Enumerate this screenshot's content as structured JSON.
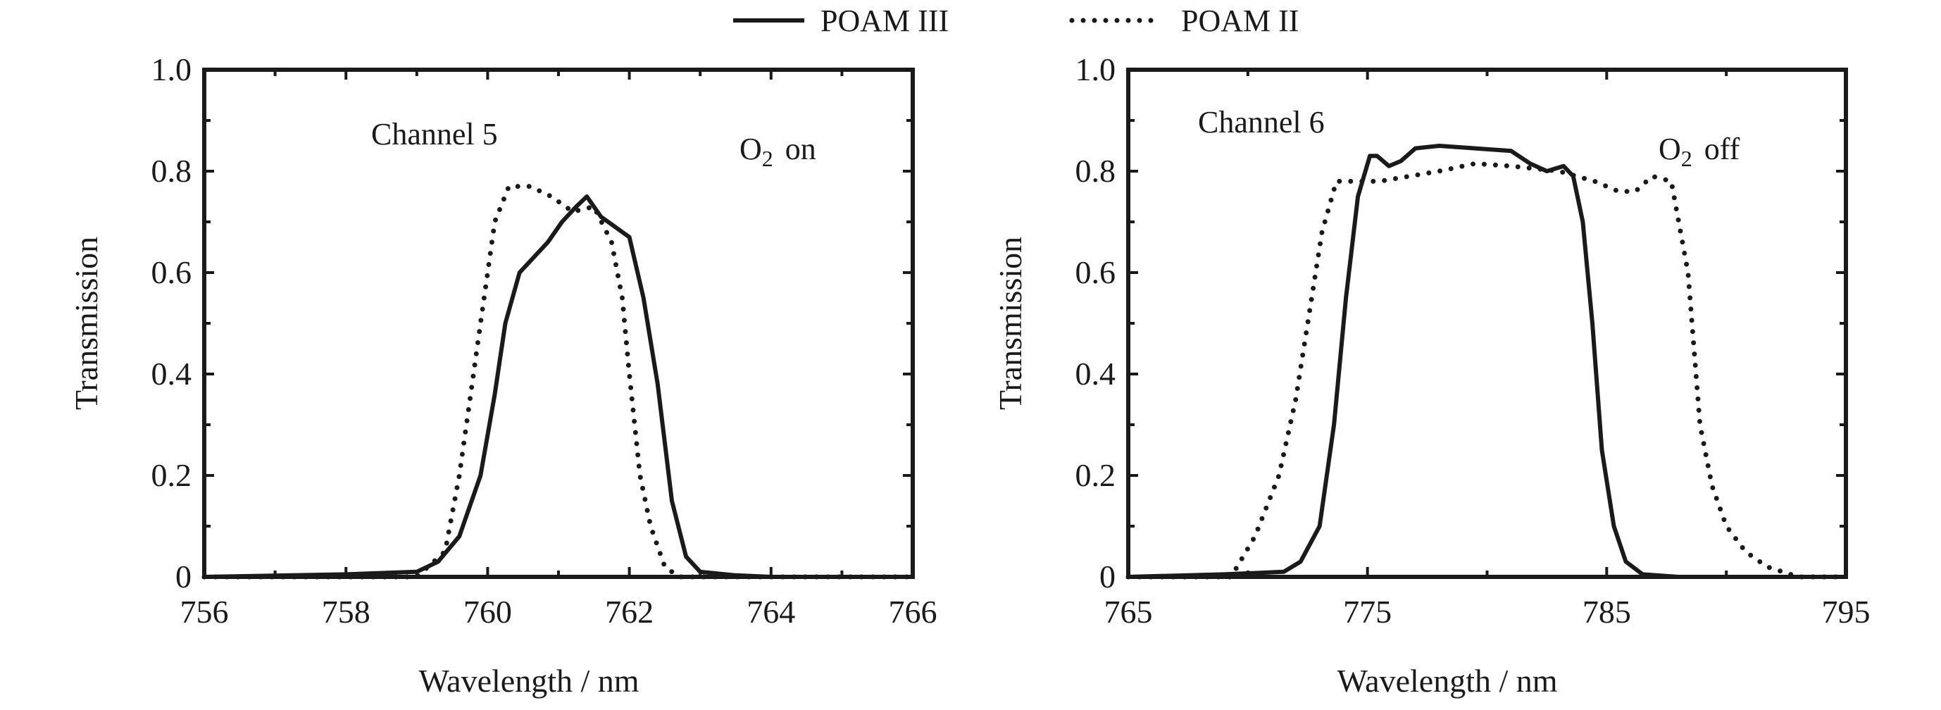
{
  "legend": {
    "items": [
      {
        "label": "POAM III",
        "style": "solid"
      },
      {
        "label": "POAM II",
        "style": "dotted"
      }
    ]
  },
  "chart_data": [
    {
      "type": "line",
      "title": "",
      "annotation": "Channel 5",
      "annotation2_main": "O",
      "annotation2_sub": "2",
      "annotation2_rest": "on",
      "xlabel": "Wavelength / nm",
      "ylabel": "Transmission",
      "xlim": [
        756,
        766
      ],
      "ylim": [
        0,
        1.0
      ],
      "xticks": [
        756,
        758,
        760,
        762,
        764,
        766
      ],
      "xminor": [
        757,
        759,
        761,
        763,
        765
      ],
      "yticks": [
        0,
        0.2,
        0.4,
        0.6,
        0.8,
        1.0
      ],
      "yticklabels": [
        "0",
        "0.2",
        "0.4",
        "0.6",
        "0.8",
        "1.0"
      ],
      "series": [
        {
          "name": "POAM III",
          "style": "solid",
          "x": [
            756,
            758,
            759,
            759.3,
            759.6,
            759.9,
            760.1,
            760.25,
            760.45,
            760.65,
            760.85,
            761.05,
            761.25,
            761.4,
            761.6,
            761.8,
            762.0,
            762.2,
            762.4,
            762.6,
            762.8,
            763.0,
            763.5,
            764,
            766
          ],
          "y": [
            0,
            0.005,
            0.01,
            0.03,
            0.08,
            0.2,
            0.36,
            0.5,
            0.6,
            0.63,
            0.66,
            0.7,
            0.73,
            0.75,
            0.71,
            0.69,
            0.67,
            0.55,
            0.38,
            0.15,
            0.04,
            0.01,
            0.003,
            0,
            0
          ]
        },
        {
          "name": "POAM II",
          "style": "dotted",
          "x": [
            756,
            759.0,
            759.4,
            759.6,
            759.75,
            759.9,
            760.0,
            760.1,
            760.3,
            760.6,
            760.9,
            761.2,
            761.5,
            761.75,
            761.9,
            762.0,
            762.15,
            762.3,
            762.5,
            762.7,
            766
          ],
          "y": [
            0,
            0,
            0.05,
            0.2,
            0.35,
            0.5,
            0.6,
            0.7,
            0.77,
            0.77,
            0.75,
            0.72,
            0.73,
            0.66,
            0.55,
            0.4,
            0.2,
            0.1,
            0.02,
            0,
            0
          ]
        }
      ]
    },
    {
      "type": "line",
      "title": "",
      "annotation": "Channel 6",
      "annotation2_main": "O",
      "annotation2_sub": "2",
      "annotation2_rest": "off",
      "xlabel": "Wavelength / nm",
      "ylabel": "Transmission",
      "xlim": [
        765,
        795
      ],
      "ylim": [
        0,
        1.0
      ],
      "xticks": [
        765,
        775,
        785,
        795
      ],
      "xminor": [
        770,
        780,
        790
      ],
      "yticks": [
        0,
        0.2,
        0.4,
        0.6,
        0.8,
        1.0
      ],
      "yticklabels": [
        "0",
        "0.2",
        "0.4",
        "0.6",
        "0.8",
        "1.0"
      ],
      "series": [
        {
          "name": "POAM III",
          "style": "solid",
          "x": [
            765,
            769,
            771.5,
            772.2,
            773,
            773.6,
            774.1,
            774.6,
            775.1,
            775.4,
            775.9,
            776.4,
            777,
            778,
            779.5,
            781,
            781.8,
            782.5,
            783.2,
            783.6,
            784,
            784.4,
            784.8,
            785.3,
            785.8,
            786.5,
            788,
            795
          ],
          "y": [
            0,
            0.005,
            0.01,
            0.03,
            0.1,
            0.3,
            0.55,
            0.75,
            0.83,
            0.83,
            0.81,
            0.82,
            0.845,
            0.85,
            0.845,
            0.84,
            0.815,
            0.8,
            0.81,
            0.79,
            0.7,
            0.5,
            0.25,
            0.1,
            0.03,
            0.005,
            0,
            0
          ]
        },
        {
          "name": "POAM II",
          "style": "dotted",
          "x": [
            765,
            769.3,
            770.3,
            771.3,
            772.0,
            772.5,
            773.1,
            773.7,
            775.5,
            778,
            779.5,
            781,
            783,
            784.5,
            785.5,
            786.2,
            786.9,
            787.7,
            788.4,
            788.9,
            789.4,
            790,
            790.8,
            791.7,
            793,
            795
          ],
          "y": [
            0,
            0,
            0.08,
            0.2,
            0.35,
            0.5,
            0.68,
            0.78,
            0.78,
            0.8,
            0.815,
            0.81,
            0.8,
            0.78,
            0.76,
            0.76,
            0.79,
            0.78,
            0.6,
            0.3,
            0.18,
            0.1,
            0.05,
            0.02,
            0,
            0
          ]
        }
      ]
    }
  ]
}
